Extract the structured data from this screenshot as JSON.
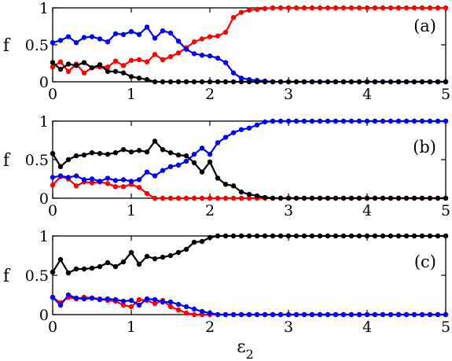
{
  "chart_data": [
    {
      "type": "line",
      "panel_label": "(a)",
      "xlabel": "",
      "ylabel": "f",
      "xlim": [
        0,
        5
      ],
      "ylim": [
        0,
        1
      ],
      "x_ticks": [
        "0",
        "1",
        "2",
        "3",
        "4",
        "5"
      ],
      "y_ticks": [
        "0",
        "0.5",
        "1"
      ],
      "grid": false,
      "x": [
        0,
        0.1,
        0.2,
        0.3,
        0.4,
        0.5,
        0.6,
        0.7,
        0.8,
        0.9,
        1.0,
        1.1,
        1.2,
        1.3,
        1.4,
        1.5,
        1.6,
        1.7,
        1.8,
        1.9,
        2.0,
        2.1,
        2.2,
        2.3,
        2.4,
        2.5,
        2.6,
        2.7,
        2.8,
        2.9,
        3.0,
        3.1,
        3.2,
        3.3,
        3.4,
        3.5,
        3.6,
        3.7,
        3.8,
        3.9,
        4.0,
        4.1,
        4.2,
        4.3,
        4.4,
        4.5,
        4.6,
        4.7,
        4.8,
        4.9,
        5.0
      ],
      "series": [
        {
          "color": "#ff0000",
          "values": [
            0.2,
            0.27,
            0.14,
            0.24,
            0.12,
            0.19,
            0.2,
            0.2,
            0.28,
            0.22,
            0.29,
            0.3,
            0.27,
            0.37,
            0.3,
            0.34,
            0.39,
            0.46,
            0.54,
            0.58,
            0.61,
            0.62,
            0.67,
            0.87,
            0.94,
            0.97,
            0.98,
            0.99,
            1.0,
            1.0,
            1.0,
            1.0,
            1.0,
            1.0,
            1.0,
            1.0,
            1.0,
            1.0,
            1.0,
            1.0,
            1.0,
            1.0,
            1.0,
            1.0,
            1.0,
            1.0,
            1.0,
            1.0,
            1.0,
            1.0,
            1.0
          ]
        },
        {
          "color": "#0000ff",
          "values": [
            0.53,
            0.56,
            0.61,
            0.53,
            0.6,
            0.61,
            0.58,
            0.54,
            0.65,
            0.64,
            0.68,
            0.64,
            0.74,
            0.59,
            0.69,
            0.66,
            0.55,
            0.44,
            0.38,
            0.36,
            0.35,
            0.32,
            0.26,
            0.12,
            0.05,
            0.03,
            0.02,
            0.01,
            0.0,
            0.0,
            0.0,
            0.0,
            0.0,
            0.0,
            0.0,
            0.0,
            0.0,
            0.0,
            0.0,
            0.0,
            0.0,
            0.0,
            0.0,
            0.0,
            0.0,
            0.0,
            0.0,
            0.0,
            0.0,
            0.0,
            0.0
          ]
        },
        {
          "color": "#000000",
          "values": [
            0.26,
            0.17,
            0.24,
            0.22,
            0.26,
            0.19,
            0.23,
            0.14,
            0.14,
            0.12,
            0.07,
            0.05,
            0.03,
            0.0,
            0.0,
            0.0,
            0.0,
            0.0,
            0.0,
            0.0,
            0.0,
            0.0,
            0.0,
            0.0,
            0.0,
            0.0,
            0.0,
            0.0,
            0.0,
            0.0,
            0.0,
            0.0,
            0.0,
            0.0,
            0.0,
            0.0,
            0.0,
            0.0,
            0.0,
            0.0,
            0.0,
            0.0,
            0.0,
            0.0,
            0.0,
            0.0,
            0.0,
            0.0,
            0.0,
            0.0,
            0.0
          ]
        }
      ]
    },
    {
      "type": "line",
      "panel_label": "(b)",
      "xlabel": "",
      "ylabel": "f",
      "xlim": [
        0,
        5
      ],
      "ylim": [
        0,
        1
      ],
      "x_ticks": [
        "0",
        "1",
        "2",
        "3",
        "4",
        "5"
      ],
      "y_ticks": [
        "0",
        "0.5",
        "1"
      ],
      "grid": false,
      "x": [
        0,
        0.1,
        0.2,
        0.3,
        0.4,
        0.5,
        0.6,
        0.7,
        0.8,
        0.9,
        1.0,
        1.1,
        1.2,
        1.3,
        1.4,
        1.5,
        1.6,
        1.7,
        1.8,
        1.9,
        2.0,
        2.1,
        2.2,
        2.3,
        2.4,
        2.5,
        2.6,
        2.7,
        2.8,
        2.9,
        3.0,
        3.1,
        3.2,
        3.3,
        3.4,
        3.5,
        3.6,
        3.7,
        3.8,
        3.9,
        4.0,
        4.1,
        4.2,
        4.3,
        4.4,
        4.5,
        4.6,
        4.7,
        4.8,
        4.9,
        5.0
      ],
      "series": [
        {
          "color": "#ff0000",
          "values": [
            0.17,
            0.28,
            0.25,
            0.16,
            0.21,
            0.2,
            0.21,
            0.19,
            0.15,
            0.15,
            0.18,
            0.14,
            0.06,
            0.0,
            0.0,
            0.0,
            0.0,
            0.0,
            0.0,
            0.0,
            0.0,
            0.0,
            0.0,
            0.0,
            0.0,
            0.0,
            0.0,
            0.0,
            0.0,
            0.0,
            0.0,
            0.0,
            0.0,
            0.0,
            0.0,
            0.0,
            0.0,
            0.0,
            0.0,
            0.0,
            0.0,
            0.0,
            0.0,
            0.0,
            0.0,
            0.0,
            0.0,
            0.0,
            0.0,
            0.0,
            0.0
          ]
        },
        {
          "color": "#0000ff",
          "values": [
            0.27,
            0.29,
            0.27,
            0.29,
            0.24,
            0.25,
            0.22,
            0.26,
            0.23,
            0.24,
            0.22,
            0.24,
            0.34,
            0.29,
            0.36,
            0.41,
            0.43,
            0.48,
            0.57,
            0.65,
            0.57,
            0.72,
            0.79,
            0.85,
            0.89,
            0.91,
            0.95,
            0.99,
            1.0,
            1.0,
            1.0,
            1.0,
            1.0,
            1.0,
            1.0,
            1.0,
            1.0,
            1.0,
            1.0,
            1.0,
            1.0,
            1.0,
            1.0,
            1.0,
            1.0,
            1.0,
            1.0,
            1.0,
            1.0,
            1.0,
            1.0
          ]
        },
        {
          "color": "#000000",
          "values": [
            0.58,
            0.41,
            0.5,
            0.55,
            0.56,
            0.59,
            0.58,
            0.57,
            0.59,
            0.63,
            0.6,
            0.62,
            0.6,
            0.74,
            0.63,
            0.59,
            0.56,
            0.55,
            0.46,
            0.34,
            0.47,
            0.26,
            0.18,
            0.16,
            0.08,
            0.05,
            0.03,
            0.01,
            0.0,
            0.0,
            0.0,
            0.0,
            0.0,
            0.0,
            0.0,
            0.0,
            0.0,
            0.0,
            0.0,
            0.0,
            0.0,
            0.0,
            0.0,
            0.0,
            0.0,
            0.0,
            0.0,
            0.0,
            0.0,
            0.0,
            0.0
          ]
        }
      ]
    },
    {
      "type": "line",
      "panel_label": "(c)",
      "xlabel": "ε2",
      "xlabel_main": "ε",
      "xlabel_sub": "2",
      "ylabel": "f",
      "xlim": [
        0,
        5
      ],
      "ylim": [
        0,
        1
      ],
      "x_ticks": [
        "0",
        "1",
        "2",
        "3",
        "4",
        "5"
      ],
      "y_ticks": [
        "0",
        "0.5",
        "1"
      ],
      "grid": false,
      "x": [
        0,
        0.1,
        0.2,
        0.3,
        0.4,
        0.5,
        0.6,
        0.7,
        0.8,
        0.9,
        1.0,
        1.1,
        1.2,
        1.3,
        1.4,
        1.5,
        1.6,
        1.7,
        1.8,
        1.9,
        2.0,
        2.1,
        2.2,
        2.3,
        2.4,
        2.5,
        2.6,
        2.7,
        2.8,
        2.9,
        3.0,
        3.1,
        3.2,
        3.3,
        3.4,
        3.5,
        3.6,
        3.7,
        3.8,
        3.9,
        4.0,
        4.1,
        4.2,
        4.3,
        4.4,
        4.5,
        4.6,
        4.7,
        4.8,
        4.9,
        5.0
      ],
      "series": [
        {
          "color": "#ff0000",
          "values": [
            0.22,
            0.15,
            0.22,
            0.2,
            0.22,
            0.21,
            0.2,
            0.18,
            0.17,
            0.12,
            0.1,
            0.19,
            0.18,
            0.14,
            0.18,
            0.1,
            0.06,
            0.02,
            0.0,
            0.0,
            0.0,
            0.0,
            0.0,
            0.0,
            0.0,
            0.0,
            0.0,
            0.0,
            0.0,
            0.0,
            0.0,
            0.0,
            0.0,
            0.0,
            0.0,
            0.0,
            0.0,
            0.0,
            0.0,
            0.0,
            0.0,
            0.0,
            0.0,
            0.0,
            0.0,
            0.0,
            0.0,
            0.0,
            0.0,
            0.0,
            0.0
          ]
        },
        {
          "color": "#0000ff",
          "values": [
            0.22,
            0.12,
            0.25,
            0.21,
            0.2,
            0.21,
            0.19,
            0.2,
            0.19,
            0.17,
            0.18,
            0.12,
            0.2,
            0.19,
            0.16,
            0.16,
            0.13,
            0.1,
            0.07,
            0.04,
            0.02,
            0.0,
            0.0,
            0.0,
            0.0,
            0.0,
            0.0,
            0.0,
            0.0,
            0.0,
            0.0,
            0.0,
            0.0,
            0.0,
            0.0,
            0.0,
            0.0,
            0.0,
            0.0,
            0.0,
            0.0,
            0.0,
            0.0,
            0.0,
            0.0,
            0.0,
            0.0,
            0.0,
            0.0,
            0.0,
            0.0
          ]
        },
        {
          "color": "#000000",
          "values": [
            0.54,
            0.7,
            0.53,
            0.58,
            0.58,
            0.59,
            0.61,
            0.66,
            0.61,
            0.67,
            0.79,
            0.64,
            0.74,
            0.71,
            0.73,
            0.75,
            0.79,
            0.83,
            0.92,
            0.93,
            0.98,
            1.0,
            1.0,
            1.0,
            1.0,
            1.0,
            1.0,
            1.0,
            1.0,
            1.0,
            1.0,
            1.0,
            1.0,
            1.0,
            1.0,
            1.0,
            1.0,
            1.0,
            1.0,
            1.0,
            1.0,
            1.0,
            1.0,
            1.0,
            1.0,
            1.0,
            1.0,
            1.0,
            1.0,
            1.0,
            1.0
          ]
        }
      ]
    }
  ]
}
